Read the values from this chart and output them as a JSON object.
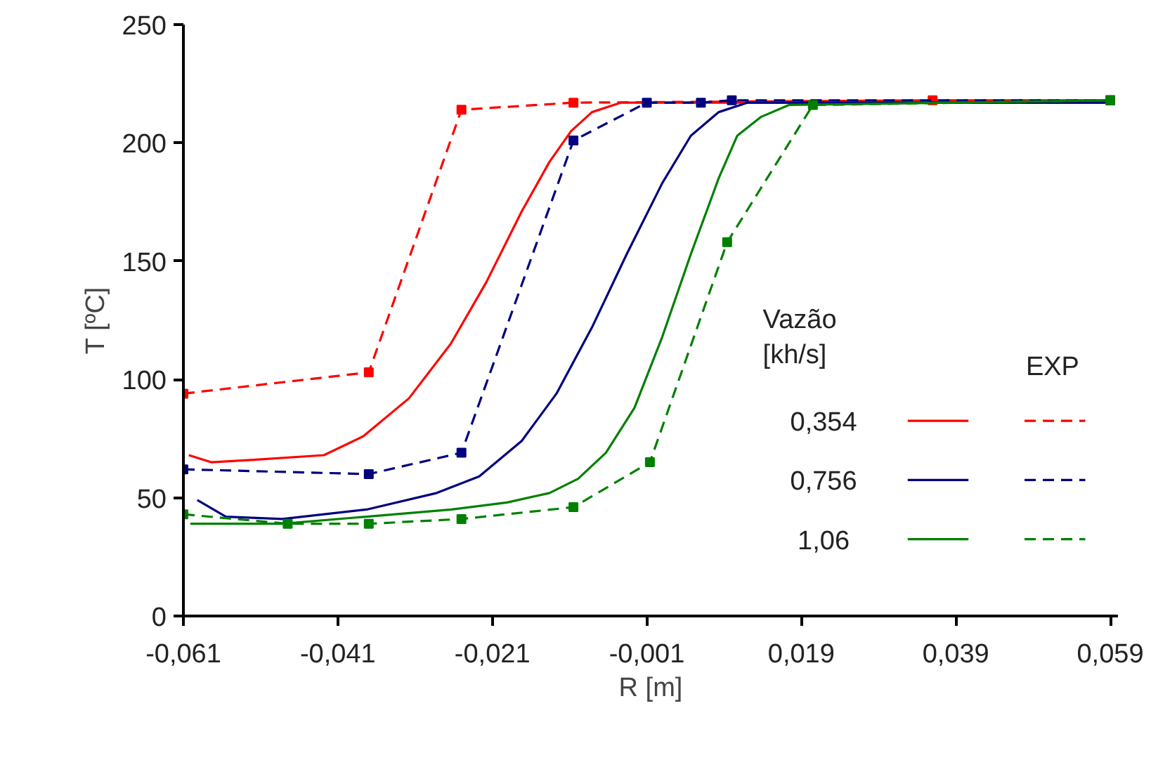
{
  "chart_data": {
    "type": "line",
    "xlabel": "R [m]",
    "ylabel": "T [ºC]",
    "legend_title": "Vazão\n[kh/s]",
    "annotations": [
      "EXP"
    ],
    "xlim": [
      -0.061,
      0.06
    ],
    "ylim": [
      0,
      250
    ],
    "xticks": [
      {
        "value": -0.061,
        "label": "-0,061"
      },
      {
        "value": -0.041,
        "label": "-0,041"
      },
      {
        "value": -0.021,
        "label": "-0,021"
      },
      {
        "value": -0.001,
        "label": "-0,001"
      },
      {
        "value": 0.019,
        "label": "0,019"
      },
      {
        "value": 0.039,
        "label": "0,039"
      },
      {
        "value": 0.059,
        "label": "0,059"
      }
    ],
    "yticks": [
      0,
      50,
      100,
      150,
      200,
      250
    ],
    "grid": false,
    "legend": "right",
    "series": [
      {
        "name": "0,354",
        "color": "#ff0000",
        "line_style": "solid",
        "marker": "none",
        "x": [
          -0.0603,
          -0.0574,
          -0.0519,
          -0.0428,
          -0.0377,
          -0.0318,
          -0.0264,
          -0.0218,
          -0.0172,
          -0.0136,
          -0.0108,
          -0.0081,
          -0.0044,
          0.059
        ],
        "values": [
          68,
          65,
          66,
          68,
          76,
          92,
          115,
          141,
          171,
          192,
          205,
          213,
          217,
          217
        ]
      },
      {
        "color": "#ff0000",
        "line_style": "dashed",
        "marker": "square",
        "x": [
          -0.061,
          -0.037,
          -0.025,
          -0.0105,
          0.036,
          0.059
        ],
        "values": [
          94,
          103,
          214,
          217,
          218,
          218
        ]
      },
      {
        "name": "0,756",
        "color": "#000080",
        "line_style": "solid",
        "marker": "none",
        "x": [
          -0.0592,
          -0.0555,
          -0.0482,
          -0.0373,
          -0.0282,
          -0.0227,
          -0.0172,
          -0.0127,
          -0.0081,
          -0.0036,
          0.001,
          0.0047,
          0.0083,
          0.012,
          0.059
        ],
        "values": [
          49,
          42,
          41,
          45,
          52,
          59,
          74,
          94,
          122,
          153,
          183,
          203,
          213,
          217,
          217
        ]
      },
      {
        "color": "#000080",
        "line_style": "dashed",
        "marker": "square",
        "x": [
          -0.061,
          -0.037,
          -0.025,
          -0.0105,
          -0.001,
          0.006,
          0.01,
          0.059
        ],
        "values": [
          62,
          60,
          69,
          201,
          217,
          217,
          218,
          218
        ]
      },
      {
        "name": "1,06",
        "color": "#008000",
        "line_style": "solid",
        "marker": "none",
        "x": [
          -0.0601,
          -0.0482,
          -0.0373,
          -0.0263,
          -0.0191,
          -0.0136,
          -0.0099,
          -0.0063,
          -0.0026,
          0.001,
          0.0047,
          0.0083,
          0.0107,
          0.0138,
          0.0174,
          0.059
        ],
        "values": [
          39,
          39,
          42,
          45,
          48,
          52,
          58,
          69,
          88,
          118,
          153,
          185,
          203,
          211,
          216,
          218
        ]
      },
      {
        "color": "#008000",
        "line_style": "dashed",
        "marker": "square",
        "x": [
          -0.061,
          -0.0475,
          -0.037,
          -0.025,
          -0.0105,
          -0.0006,
          0.0094,
          0.0205,
          0.059
        ],
        "values": [
          43,
          39,
          39,
          41,
          46,
          65,
          158,
          216,
          218
        ]
      }
    ]
  }
}
